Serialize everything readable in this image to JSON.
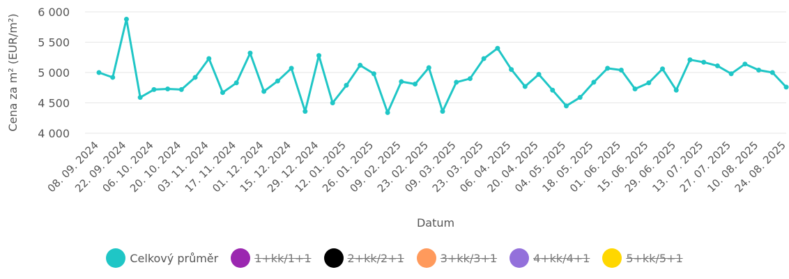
{
  "chart_data": {
    "type": "line",
    "title": "",
    "xlabel": "Datum",
    "ylabel": "Cena za m² (EUR/m²)",
    "ylim": [
      4000,
      6000
    ],
    "y_ticks": [
      "4 000",
      "4 500",
      "5 000",
      "5 500",
      "6 000"
    ],
    "y_tick_values": [
      4000,
      4500,
      5000,
      5500,
      6000
    ],
    "x_tick_labels": [
      "08. 09. 2024",
      "22. 09. 2024",
      "06. 10. 2024",
      "20. 10. 2024",
      "03. 11. 2024",
      "17. 11. 2024",
      "01. 12. 2024",
      "15. 12. 2024",
      "29. 12. 2024",
      "12. 01. 2025",
      "26. 01. 2025",
      "09. 02. 2025",
      "23. 02. 2025",
      "09. 03. 2025",
      "23. 03. 2025",
      "06. 04. 2025",
      "20. 04. 2025",
      "04. 05. 2025",
      "18. 05. 2025",
      "01. 06. 2025",
      "15. 06. 2025",
      "29. 06. 2025",
      "13. 07. 2025",
      "27. 07. 2025",
      "10. 08. 2025",
      "24. 08. 2025"
    ],
    "grid": true,
    "legend_placement": "bottom",
    "series": [
      {
        "name": "Celkový průměr",
        "color": "#1fc6c6",
        "visible": true,
        "values": [
          5000,
          4920,
          5880,
          4590,
          4720,
          4730,
          4720,
          4920,
          5230,
          4670,
          4830,
          5320,
          4690,
          4860,
          5070,
          4360,
          5280,
          4500,
          4790,
          5120,
          4980,
          4340,
          4850,
          4810,
          5080,
          4360,
          4840,
          4900,
          5230,
          5400,
          5050,
          4770,
          4970,
          4710,
          4450,
          4590,
          4840,
          5070,
          5040,
          4730,
          4830,
          5060,
          4710,
          5210,
          5170,
          5110,
          4980,
          5140,
          5040,
          5000,
          4760
        ]
      }
    ],
    "legend": [
      {
        "label": "Celkový průměr",
        "color": "#1fc6c6",
        "visible": true
      },
      {
        "label": "1+kk/1+1",
        "color": "#9b27b0",
        "visible": false
      },
      {
        "label": "2+kk/2+1",
        "color": "#000000",
        "visible": false
      },
      {
        "label": "3+kk/3+1",
        "color": "#ff9a5c",
        "visible": false
      },
      {
        "label": "4+kk/4+1",
        "color": "#9370db",
        "visible": false
      },
      {
        "label": "5+kk/5+1",
        "color": "#ffd700",
        "visible": false
      }
    ]
  }
}
